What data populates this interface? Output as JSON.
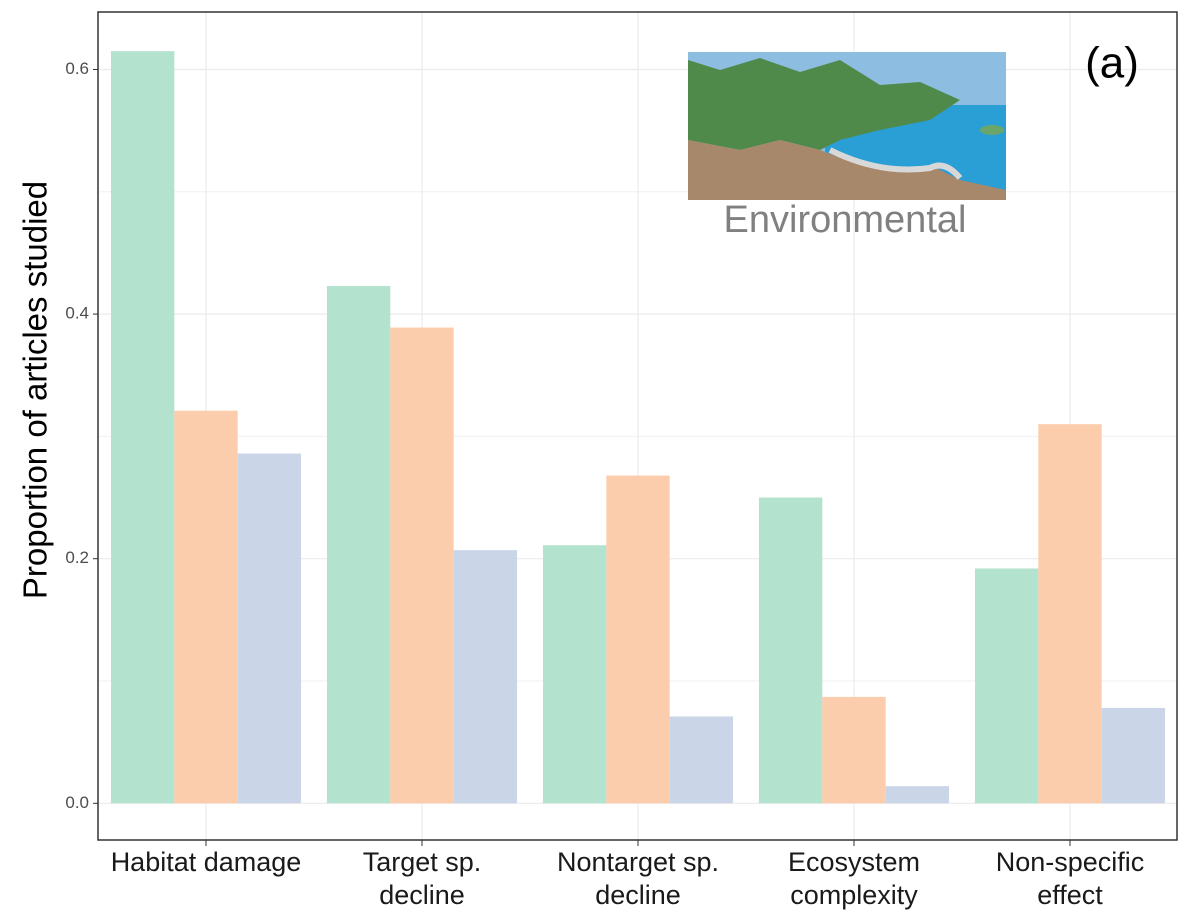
{
  "chart_data": {
    "type": "bar",
    "y_label": "Proportion of articles studied",
    "categories": [
      [
        "Habitat damage"
      ],
      [
        "Target sp.",
        "decline"
      ],
      [
        "Nontarget sp.",
        "decline"
      ],
      [
        "Ecosystem",
        "complexity"
      ],
      [
        "Non-specific",
        "effect"
      ]
    ],
    "series": [
      {
        "color": "#b3e3ce",
        "values": [
          0.615,
          0.423,
          0.211,
          0.25,
          0.192
        ]
      },
      {
        "color": "#fccdac",
        "values": [
          0.321,
          0.389,
          0.268,
          0.087,
          0.31
        ]
      },
      {
        "color": "#cbd5e8",
        "values": [
          0.286,
          0.207,
          0.071,
          0.014,
          0.078
        ]
      }
    ],
    "ylim": [
      -0.03,
      0.647
    ],
    "yticks": [
      {
        "value": 0,
        "label": "0.0"
      },
      0.2,
      0.4,
      0.6
    ],
    "minor_yticks": [
      0.1,
      0.3,
      0.5
    ],
    "grid": true,
    "panel_label": "(a)",
    "inset_caption": "Environmental"
  }
}
